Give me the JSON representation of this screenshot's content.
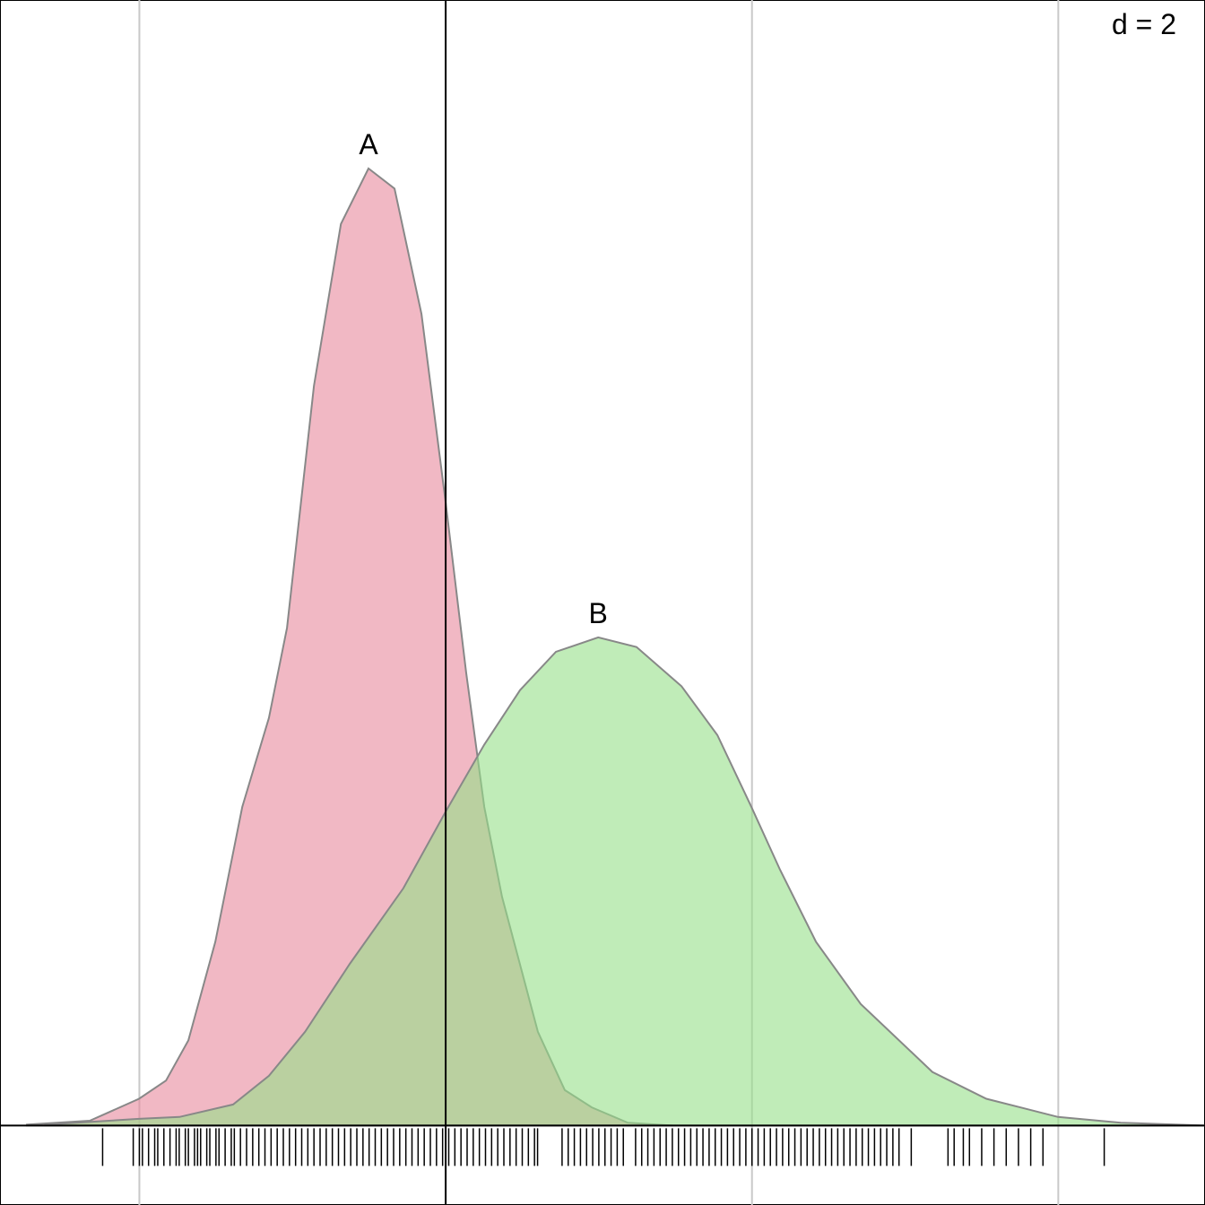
{
  "chart_data": {
    "type": "density",
    "annotation": "d = 2",
    "xlim": [
      -1.455,
      2.479
    ],
    "ylim": [
      -0.083,
      1.176
    ],
    "xticks": [
      -1,
      0,
      1,
      2
    ],
    "grid": true,
    "vline": 0,
    "series": [
      {
        "name": "A",
        "color": "#e8899c",
        "x": [
          -1.367,
          -1.162,
          -1.001,
          -0.913,
          -0.84,
          -0.752,
          -0.664,
          -0.577,
          -0.518,
          -0.43,
          -0.342,
          -0.252,
          -0.167,
          -0.079,
          0,
          0.067,
          0.126,
          0.184,
          0.301,
          0.389,
          0.477,
          0.594,
          0.74
        ],
        "values": [
          0.001,
          0.005,
          0.028,
          0.047,
          0.089,
          0.192,
          0.333,
          0.426,
          0.52,
          0.773,
          0.942,
          1.0,
          0.979,
          0.848,
          0.651,
          0.473,
          0.333,
          0.239,
          0.098,
          0.037,
          0.019,
          0.003,
          0
        ]
      },
      {
        "name": "B",
        "color": "#96e088",
        "x": [
          -1.308,
          -1.001,
          -0.869,
          -0.694,
          -0.577,
          -0.459,
          -0.313,
          -0.138,
          0,
          0.126,
          0.243,
          0.36,
          0.498,
          0.623,
          0.77,
          0.887,
          0.998,
          1.092,
          1.209,
          1.355,
          1.589,
          1.765,
          1.999,
          2.204,
          2.479
        ],
        "values": [
          0.001,
          0.007,
          0.009,
          0.022,
          0.052,
          0.098,
          0.169,
          0.248,
          0.328,
          0.398,
          0.455,
          0.495,
          0.51,
          0.5,
          0.459,
          0.408,
          0.333,
          0.267,
          0.192,
          0.127,
          0.056,
          0.028,
          0.009,
          0.003,
          0
        ]
      }
    ],
    "rug": [
      -1.12,
      -1.02,
      -1.0,
      -0.99,
      -0.97,
      -0.95,
      -0.94,
      -0.92,
      -0.9,
      -0.88,
      -0.87,
      -0.85,
      -0.84,
      -0.82,
      -0.81,
      -0.8,
      -0.78,
      -0.77,
      -0.75,
      -0.74,
      -0.72,
      -0.7,
      -0.69,
      -0.67,
      -0.65,
      -0.63,
      -0.61,
      -0.59,
      -0.57,
      -0.55,
      -0.53,
      -0.51,
      -0.49,
      -0.47,
      -0.45,
      -0.43,
      -0.41,
      -0.39,
      -0.37,
      -0.35,
      -0.33,
      -0.31,
      -0.29,
      -0.27,
      -0.25,
      -0.23,
      -0.21,
      -0.19,
      -0.17,
      -0.15,
      -0.13,
      -0.11,
      -0.09,
      -0.07,
      -0.05,
      -0.03,
      -0.01,
      0.01,
      0.03,
      0.05,
      0.07,
      0.09,
      0.11,
      0.13,
      0.15,
      0.17,
      0.19,
      0.21,
      0.23,
      0.25,
      0.27,
      0.29,
      0.3,
      0.38,
      0.4,
      0.42,
      0.44,
      0.46,
      0.48,
      0.5,
      0.52,
      0.54,
      0.56,
      0.58,
      0.62,
      0.64,
      0.66,
      0.68,
      0.7,
      0.72,
      0.74,
      0.76,
      0.78,
      0.8,
      0.82,
      0.84,
      0.86,
      0.88,
      0.9,
      0.92,
      0.94,
      0.96,
      0.98,
      1.0,
      1.02,
      1.04,
      1.06,
      1.08,
      1.1,
      1.12,
      1.14,
      1.16,
      1.18,
      1.2,
      1.22,
      1.24,
      1.26,
      1.28,
      1.3,
      1.32,
      1.34,
      1.36,
      1.38,
      1.4,
      1.42,
      1.44,
      1.46,
      1.48,
      1.52,
      1.64,
      1.66,
      1.69,
      1.71,
      1.75,
      1.79,
      1.83,
      1.87,
      1.91,
      1.95,
      2.15
    ]
  }
}
